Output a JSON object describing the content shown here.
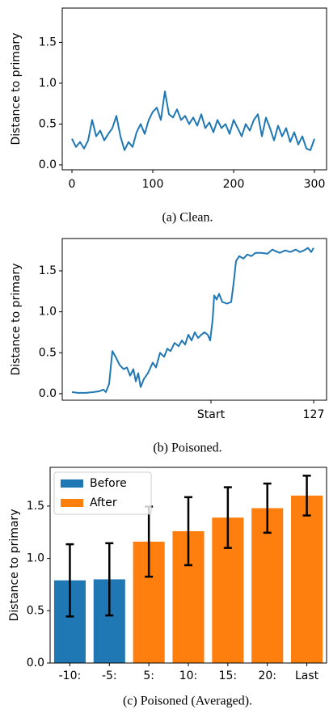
{
  "chart_data": [
    {
      "type": "line",
      "caption": "(a) Clean.",
      "y_label": "Distance to primary",
      "color": "#1f77b4",
      "x": [
        0,
        5,
        10,
        15,
        20,
        25,
        30,
        35,
        40,
        45,
        50,
        55,
        60,
        65,
        70,
        75,
        80,
        85,
        90,
        95,
        100,
        105,
        110,
        115,
        120,
        125,
        130,
        135,
        140,
        145,
        150,
        155,
        160,
        165,
        170,
        175,
        180,
        185,
        190,
        195,
        200,
        205,
        210,
        215,
        220,
        225,
        230,
        235,
        240,
        245,
        250,
        255,
        260,
        265,
        270,
        275,
        280,
        285,
        290,
        295,
        300
      ],
      "values": [
        0.32,
        0.22,
        0.28,
        0.2,
        0.3,
        0.55,
        0.35,
        0.42,
        0.3,
        0.38,
        0.45,
        0.6,
        0.35,
        0.18,
        0.28,
        0.22,
        0.4,
        0.5,
        0.38,
        0.55,
        0.65,
        0.7,
        0.55,
        0.9,
        0.62,
        0.58,
        0.68,
        0.55,
        0.6,
        0.5,
        0.58,
        0.48,
        0.62,
        0.45,
        0.52,
        0.4,
        0.55,
        0.45,
        0.5,
        0.38,
        0.55,
        0.45,
        0.35,
        0.5,
        0.42,
        0.55,
        0.62,
        0.35,
        0.58,
        0.45,
        0.3,
        0.48,
        0.35,
        0.45,
        0.28,
        0.4,
        0.25,
        0.35,
        0.2,
        0.18,
        0.32
      ],
      "xlim": [
        -12,
        315
      ],
      "xticks": [
        0,
        100,
        200,
        300
      ],
      "ylim": [
        -0.06,
        1.92
      ],
      "yticks": [
        {
          "value": 0,
          "label": "0.0"
        },
        {
          "value": 0.5,
          "label": "0.5"
        },
        {
          "value": 1,
          "label": "1.0"
        },
        {
          "value": 1.5,
          "label": "1.5"
        }
      ]
    },
    {
      "type": "line",
      "caption": "(b) Poisoned.",
      "y_label": "Distance to primary",
      "color": "#1f77b4",
      "x": [
        -172,
        -165,
        -155,
        -145,
        -138,
        -133,
        -130,
        -126,
        -122,
        -118,
        -113,
        -108,
        -104,
        -100,
        -96,
        -93,
        -90,
        -87,
        -83,
        -78,
        -72,
        -68,
        -63,
        -58,
        -54,
        -50,
        -45,
        -40,
        -36,
        -32,
        -28,
        -24,
        -20,
        -16,
        -12,
        -8,
        -4,
        -1,
        2,
        4,
        7,
        10,
        14,
        20,
        25,
        28,
        31,
        35,
        40,
        45,
        50,
        55,
        62,
        70,
        76,
        80,
        85,
        92,
        98,
        105,
        110,
        115,
        120,
        124,
        127
      ],
      "values": [
        0.02,
        0.01,
        0.01,
        0.02,
        0.03,
        0.05,
        0.02,
        0.12,
        0.52,
        0.45,
        0.35,
        0.3,
        0.32,
        0.22,
        0.3,
        0.15,
        0.25,
        0.08,
        0.18,
        0.25,
        0.38,
        0.32,
        0.5,
        0.45,
        0.55,
        0.52,
        0.62,
        0.58,
        0.65,
        0.6,
        0.72,
        0.65,
        0.75,
        0.68,
        0.72,
        0.75,
        0.72,
        0.65,
        0.9,
        1.2,
        1.15,
        1.22,
        1.12,
        1.1,
        1.12,
        1.35,
        1.62,
        1.68,
        1.65,
        1.7,
        1.68,
        1.72,
        1.72,
        1.71,
        1.76,
        1.74,
        1.72,
        1.75,
        1.73,
        1.76,
        1.73,
        1.75,
        1.78,
        1.73,
        1.78
      ],
      "xlim": [
        -184,
        143
      ],
      "xticks": [
        {
          "value": 0,
          "label": "Start"
        },
        127
      ],
      "ylim": [
        -0.08,
        1.895
      ],
      "yticks": [
        {
          "value": 0,
          "label": "0.0"
        },
        {
          "value": 0.5,
          "label": "0.5"
        },
        {
          "value": 1,
          "label": "1.0"
        },
        {
          "value": 1.5,
          "label": "1.5"
        }
      ]
    },
    {
      "type": "bar",
      "caption": "(c) Poisoned (Averaged).",
      "y_label": "Distance to primary",
      "legend": "upper left",
      "categories": [
        "-10:",
        "-5:",
        "5:",
        "10:",
        "15:",
        "20:",
        "Last"
      ],
      "series": [
        {
          "name": "Before",
          "color": "#1f77b4",
          "values": [
            0.79,
            0.8,
            null,
            null,
            null,
            null,
            null
          ],
          "errors": [
            0.345,
            0.345,
            null,
            null,
            null,
            null,
            null
          ]
        },
        {
          "name": "After",
          "color": "#ff7f0e",
          "values": [
            null,
            null,
            1.16,
            1.26,
            1.39,
            1.48,
            1.6
          ],
          "errors": [
            null,
            null,
            0.335,
            0.325,
            0.29,
            0.235,
            0.19
          ]
        }
      ],
      "ylim": [
        0,
        1.87
      ],
      "yticks": [
        {
          "value": 0,
          "label": "0.0"
        },
        {
          "value": 0.5,
          "label": "0.5"
        },
        {
          "value": 1,
          "label": "1.0"
        },
        {
          "value": 1.5,
          "label": "1.5"
        }
      ]
    }
  ]
}
